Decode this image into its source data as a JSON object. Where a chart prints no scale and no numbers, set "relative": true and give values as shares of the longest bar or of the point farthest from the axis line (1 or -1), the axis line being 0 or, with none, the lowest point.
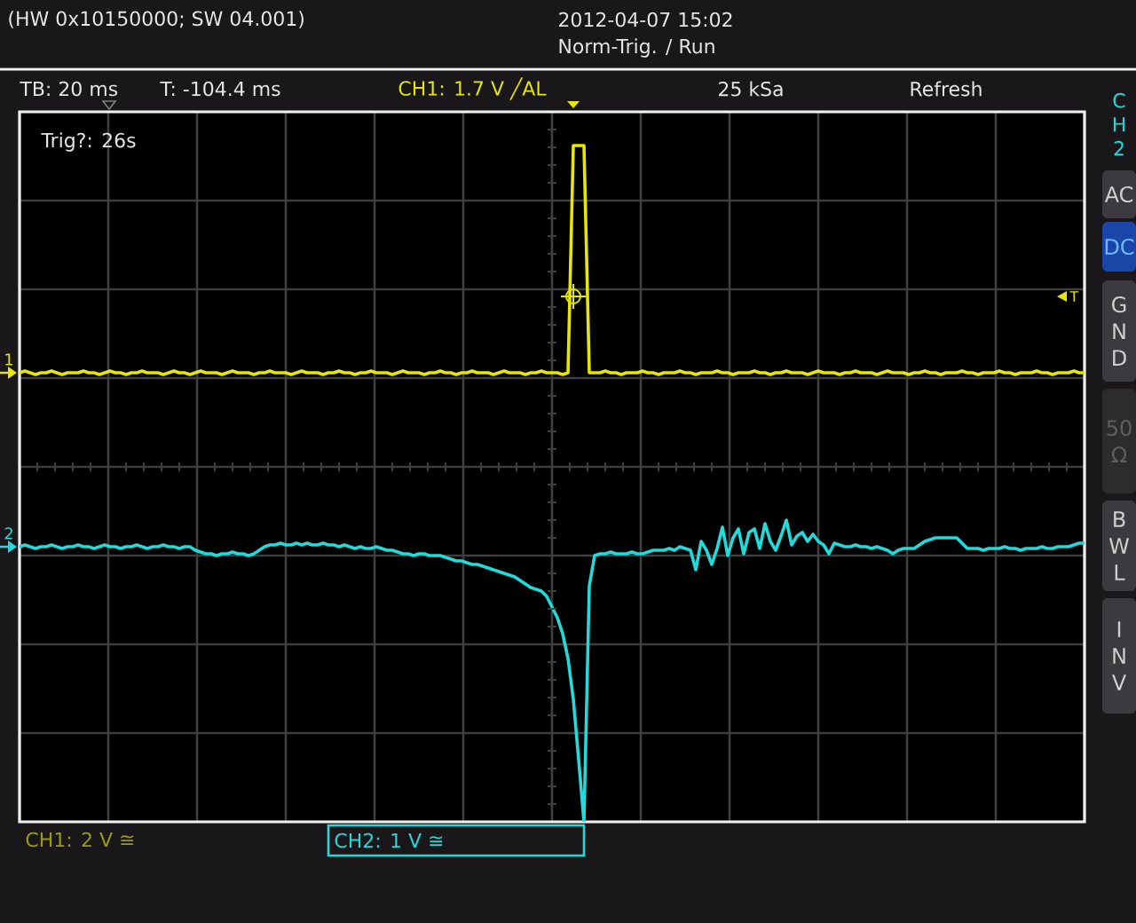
{
  "chart_data": {
    "type": "line",
    "title": "(HW 0x10150000; SW 04.001)",
    "relative": true,
    "grid": true,
    "categories": [
      null,
      null,
      null,
      null,
      null,
      null,
      null,
      null,
      null,
      null,
      null,
      null,
      null,
      null,
      null,
      null,
      null,
      null,
      null,
      null,
      null,
      null,
      null,
      null,
      null,
      null,
      null,
      null,
      null,
      null,
      null,
      null,
      null,
      null,
      null,
      null,
      null,
      null,
      null,
      null,
      null,
      null,
      null,
      null,
      null,
      null,
      null,
      null,
      null,
      null,
      null,
      null,
      null,
      null,
      null,
      null,
      null,
      null,
      null,
      null,
      null,
      null,
      null,
      null,
      null,
      null,
      null,
      null,
      null,
      null,
      null,
      null,
      null,
      null,
      null,
      null,
      null,
      null,
      null,
      null,
      null,
      null,
      null,
      null,
      null,
      null,
      null,
      null,
      null,
      null,
      null,
      null,
      null,
      null,
      null,
      null,
      null,
      null,
      null,
      null,
      null,
      null,
      null,
      null,
      null,
      null,
      null,
      null,
      null,
      null,
      null,
      null,
      null,
      null,
      null,
      null,
      null,
      null,
      null,
      null,
      null,
      null,
      null,
      null,
      null,
      null,
      null,
      null,
      null,
      null,
      null,
      null,
      null,
      null,
      null,
      null,
      null,
      null,
      null,
      null,
      null,
      null,
      null,
      null,
      null,
      null,
      null,
      null,
      null,
      null,
      null,
      null,
      null,
      null,
      null,
      null,
      null,
      null,
      null,
      null,
      null,
      null,
      null,
      null,
      null,
      null,
      null,
      null,
      null,
      null,
      null,
      null,
      null,
      null,
      null,
      null,
      null,
      null,
      null,
      null,
      null,
      null,
      null,
      null,
      null,
      null,
      null,
      null,
      null,
      null,
      null,
      null,
      null,
      null,
      null,
      null,
      null,
      null,
      null,
      null,
      null
    ],
    "series": [
      {
        "name": "1",
        "color": "#e6e600",
        "values": [
          0.265,
          0.27,
          0.265,
          0.26,
          0.265,
          0.265,
          0.27,
          0.265,
          0.26,
          0.265,
          0.265,
          0.265,
          0.27,
          0.265,
          0.265,
          0.26,
          0.265,
          0.27,
          0.265,
          0.265,
          0.26,
          0.265,
          0.265,
          0.27,
          0.265,
          0.265,
          0.265,
          0.26,
          0.265,
          0.27,
          0.265,
          0.265,
          0.26,
          0.265,
          0.27,
          0.265,
          0.265,
          0.265,
          0.26,
          0.265,
          0.27,
          0.265,
          0.265,
          0.265,
          0.26,
          0.265,
          0.265,
          0.27,
          0.265,
          0.265,
          0.265,
          0.26,
          0.265,
          0.27,
          0.265,
          0.265,
          0.265,
          0.26,
          0.265,
          0.265,
          0.27,
          0.265,
          0.265,
          0.26,
          0.265,
          0.265,
          0.27,
          0.265,
          0.265,
          0.265,
          0.26,
          0.265,
          0.27,
          0.265,
          0.265,
          0.265,
          0.26,
          0.265,
          0.265,
          0.27,
          0.265,
          0.265,
          0.26,
          0.265,
          0.265,
          0.27,
          0.265,
          0.265,
          0.265,
          0.26,
          0.265,
          0.27,
          0.265,
          0.265,
          0.265,
          0.26,
          0.265,
          0.265,
          0.27,
          0.265,
          0.265,
          0.265,
          0.26,
          0.265,
          0.905,
          0.905,
          0.905,
          0.265,
          0.265,
          0.265,
          0.27,
          0.265,
          0.265,
          0.26,
          0.265,
          0.265,
          0.265,
          0.27,
          0.265,
          0.265,
          0.26,
          0.265,
          0.265,
          0.265,
          0.27,
          0.265,
          0.265,
          0.26,
          0.265,
          0.265,
          0.265,
          0.27,
          0.265,
          0.265,
          0.26,
          0.265,
          0.265,
          0.265,
          0.27,
          0.265,
          0.265,
          0.26,
          0.265,
          0.265,
          0.27,
          0.265,
          0.265,
          0.265,
          0.26,
          0.265,
          0.27,
          0.265,
          0.265,
          0.265,
          0.26,
          0.265,
          0.265,
          0.27,
          0.265,
          0.265,
          0.265,
          0.26,
          0.265,
          0.27,
          0.265,
          0.265,
          0.265,
          0.26,
          0.265,
          0.265,
          0.27,
          0.265,
          0.265,
          0.26,
          0.265,
          0.265,
          0.265,
          0.27,
          0.265,
          0.265,
          0.26,
          0.265,
          0.265,
          0.265,
          0.27,
          0.265,
          0.265,
          0.26,
          0.265,
          0.265,
          0.265,
          0.27,
          0.265,
          0.265,
          0.26,
          0.265,
          0.265,
          0.265,
          0.27,
          0.265,
          0.265
        ]
      },
      {
        "name": "2",
        "color": "#22dada",
        "values": [
          -0.225,
          -0.22,
          -0.225,
          -0.23,
          -0.225,
          -0.225,
          -0.22,
          -0.225,
          -0.23,
          -0.225,
          -0.225,
          -0.22,
          -0.225,
          -0.225,
          -0.23,
          -0.225,
          -0.22,
          -0.225,
          -0.225,
          -0.23,
          -0.225,
          -0.225,
          -0.22,
          -0.225,
          -0.23,
          -0.225,
          -0.225,
          -0.22,
          -0.225,
          -0.225,
          -0.23,
          -0.225,
          -0.225,
          -0.235,
          -0.24,
          -0.245,
          -0.245,
          -0.25,
          -0.245,
          -0.245,
          -0.24,
          -0.245,
          -0.245,
          -0.25,
          -0.245,
          -0.235,
          -0.225,
          -0.22,
          -0.22,
          -0.215,
          -0.22,
          -0.22,
          -0.215,
          -0.22,
          -0.215,
          -0.22,
          -0.22,
          -0.215,
          -0.22,
          -0.22,
          -0.225,
          -0.22,
          -0.225,
          -0.23,
          -0.225,
          -0.23,
          -0.23,
          -0.225,
          -0.23,
          -0.235,
          -0.235,
          -0.24,
          -0.245,
          -0.245,
          -0.25,
          -0.245,
          -0.245,
          -0.25,
          -0.25,
          -0.25,
          -0.255,
          -0.26,
          -0.265,
          -0.265,
          -0.27,
          -0.275,
          -0.275,
          -0.28,
          -0.285,
          -0.29,
          -0.295,
          -0.3,
          -0.305,
          -0.31,
          -0.32,
          -0.33,
          -0.34,
          -0.345,
          -0.35,
          -0.365,
          -0.395,
          -0.425,
          -0.47,
          -0.54,
          -0.655,
          -0.825,
          -1,
          -0.335,
          -0.25,
          -0.245,
          -0.245,
          -0.24,
          -0.245,
          -0.245,
          -0.245,
          -0.24,
          -0.245,
          -0.245,
          -0.24,
          -0.235,
          -0.235,
          -0.235,
          -0.23,
          -0.235,
          -0.225,
          -0.23,
          -0.235,
          -0.29,
          -0.21,
          -0.235,
          -0.275,
          -0.23,
          -0.17,
          -0.25,
          -0.2,
          -0.175,
          -0.245,
          -0.185,
          -0.175,
          -0.23,
          -0.16,
          -0.21,
          -0.235,
          -0.195,
          -0.15,
          -0.22,
          -0.195,
          -0.185,
          -0.21,
          -0.19,
          -0.21,
          -0.22,
          -0.245,
          -0.215,
          -0.22,
          -0.225,
          -0.225,
          -0.22,
          -0.225,
          -0.225,
          -0.23,
          -0.225,
          -0.23,
          -0.235,
          -0.245,
          -0.235,
          -0.23,
          -0.23,
          -0.23,
          -0.22,
          -0.21,
          -0.205,
          -0.2,
          -0.2,
          -0.2,
          -0.2,
          -0.2,
          -0.215,
          -0.23,
          -0.23,
          -0.23,
          -0.235,
          -0.23,
          -0.23,
          -0.23,
          -0.225,
          -0.23,
          -0.23,
          -0.235,
          -0.23,
          -0.23,
          -0.23,
          -0.225,
          -0.23,
          -0.23,
          -0.225,
          -0.225,
          -0.225,
          -0.22,
          -0.215,
          -0.215
        ]
      }
    ],
    "annotations": [
      "2012-04-07 15:02",
      "Norm-Trig. / Run",
      "TB: 20 ms",
      "T: -104.4 ms",
      "CH1: 1.7 V ╱AL",
      "25 kSa",
      "Refresh",
      "Trig?: 26s",
      "T",
      "CH2",
      "AC",
      "DC",
      "GND",
      "50 Ω",
      "BWL",
      "INV",
      "CH1: 2 V ≅",
      "CH2: 1 V ≅"
    ]
  }
}
